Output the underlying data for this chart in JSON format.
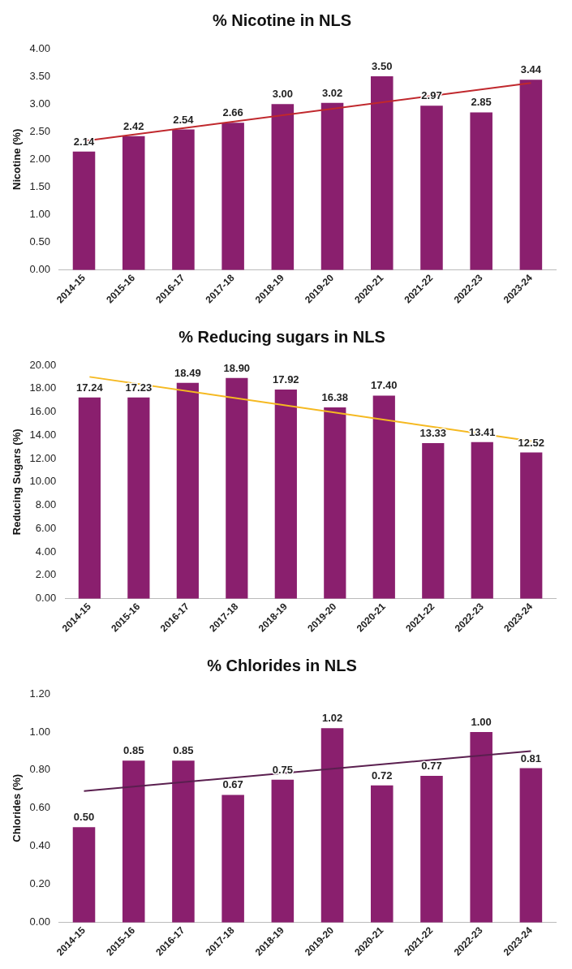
{
  "chart_data": [
    {
      "type": "bar",
      "title": "% Nicotine in NLS",
      "ylabel": "Nicotine (%)",
      "categories": [
        "2014-15",
        "2015-16",
        "2016-17",
        "2017-18",
        "2018-19",
        "2019-20",
        "2020-21",
        "2021-22",
        "2022-23",
        "2023-24"
      ],
      "series": [
        {
          "color": "#8a1f6e",
          "values": [
            2.14,
            2.42,
            2.54,
            2.66,
            3.0,
            3.02,
            3.5,
            2.97,
            2.85,
            3.44
          ],
          "value_labels": [
            "2.14",
            "2.42",
            "2.54",
            "2.66",
            "3.00",
            "3.02",
            "3.50",
            "2.97",
            "2.85",
            "3.44"
          ]
        },
        {
          "type": "line",
          "color": "#c0282d",
          "x": [
            "2014-15",
            "2023-24"
          ],
          "values": [
            2.33,
            3.38
          ]
        }
      ],
      "ylim": [
        0,
        4
      ],
      "yticks": [
        {
          "value": 0,
          "label": "0.00"
        },
        {
          "value": 0.5,
          "label": "0.50"
        },
        {
          "value": 1,
          "label": "1.00"
        },
        {
          "value": 1.5,
          "label": "1.50"
        },
        {
          "value": 2,
          "label": "2.00"
        },
        {
          "value": 2.5,
          "label": "2.50"
        },
        {
          "value": 3,
          "label": "3.00"
        },
        {
          "value": 3.5,
          "label": "3.50"
        },
        {
          "value": 4,
          "label": "4.00"
        }
      ]
    },
    {
      "type": "bar",
      "title": "% Reducing sugars in NLS",
      "ylabel": "Reducing Sugars (%)",
      "categories": [
        "2014-15",
        "2015-16",
        "2016-17",
        "2017-18",
        "2018-19",
        "2019-20",
        "2020-21",
        "2021-22",
        "2022-23",
        "2023-24"
      ],
      "series": [
        {
          "color": "#8a1f6e",
          "values": [
            17.24,
            17.23,
            18.49,
            18.9,
            17.92,
            16.38,
            17.4,
            13.33,
            13.41,
            12.52
          ],
          "value_labels": [
            "17.24",
            "17.23",
            "18.49",
            "18.90",
            "17.92",
            "16.38",
            "17.40",
            "13.33",
            "13.41",
            "12.52"
          ]
        },
        {
          "type": "line",
          "color": "#f5b921",
          "x": [
            "2014-15",
            "2023-24"
          ],
          "values": [
            19.0,
            13.5
          ]
        }
      ],
      "ylim": [
        0,
        20
      ],
      "yticks": [
        {
          "value": 0,
          "label": "0.00"
        },
        {
          "value": 2,
          "label": "2.00"
        },
        {
          "value": 4,
          "label": "4.00"
        },
        {
          "value": 6,
          "label": "6.00"
        },
        {
          "value": 8,
          "label": "8.00"
        },
        {
          "value": 10,
          "label": "10.00"
        },
        {
          "value": 12,
          "label": "12.00"
        },
        {
          "value": 14,
          "label": "14.00"
        },
        {
          "value": 16,
          "label": "16.00"
        },
        {
          "value": 18,
          "label": "18.00"
        },
        {
          "value": 20,
          "label": "20.00"
        }
      ]
    },
    {
      "type": "bar",
      "title": "% Chlorides in NLS",
      "ylabel": "Chlorides (%)",
      "categories": [
        "2014-15",
        "2015-16",
        "2016-17",
        "2017-18",
        "2018-19",
        "2019-20",
        "2020-21",
        "2021-22",
        "2022-23",
        "2023-24"
      ],
      "series": [
        {
          "color": "#8a1f6e",
          "values": [
            0.5,
            0.85,
            0.85,
            0.67,
            0.75,
            1.02,
            0.72,
            0.77,
            1.0,
            0.81
          ],
          "value_labels": [
            "0.50",
            "0.85",
            "0.85",
            "0.67",
            "0.75",
            "1.02",
            "0.72",
            "0.77",
            "1.00",
            "0.81"
          ]
        },
        {
          "type": "line",
          "color": "#5a1f4f",
          "x": [
            "2014-15",
            "2023-24"
          ],
          "values": [
            0.69,
            0.9
          ]
        }
      ],
      "ylim": [
        0,
        1.2
      ],
      "yticks": [
        {
          "value": 0,
          "label": "0.00"
        },
        {
          "value": 0.2,
          "label": "0.20"
        },
        {
          "value": 0.4,
          "label": "0.40"
        },
        {
          "value": 0.6,
          "label": "0.60"
        },
        {
          "value": 0.8,
          "label": "0.80"
        },
        {
          "value": 1,
          "label": "1.00"
        },
        {
          "value": 1.2,
          "label": "1.20"
        }
      ]
    }
  ]
}
